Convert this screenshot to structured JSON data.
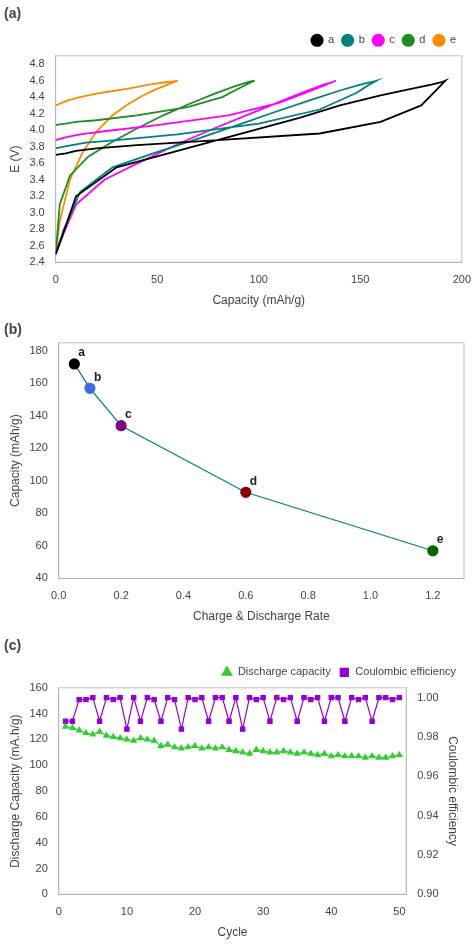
{
  "chart_data": [
    {
      "type": "line",
      "title": "(a)",
      "xlabel": "Capacity (mAh/g)",
      "ylabel": "E (V)",
      "xlim": [
        0,
        200
      ],
      "ylim": [
        2.4,
        4.9
      ],
      "xticks": [
        0,
        50,
        100,
        150,
        200
      ],
      "yticks": [
        2.4,
        2.6,
        2.8,
        {
          "value": 3.0,
          "label": "3.0"
        },
        3.2,
        3.4,
        3.6,
        3.8,
        {
          "value": 4.0,
          "label": "4.0"
        },
        4.2,
        4.4,
        4.6,
        4.8
      ],
      "grid": false,
      "legend": "upper right",
      "series": [
        {
          "name": "a",
          "color": "#000000",
          "x": [
            0,
            5,
            10,
            20,
            40,
            80,
            130,
            160,
            180,
            188,
            192,
            192,
            190,
            185,
            175,
            160,
            140,
            120,
            90,
            60,
            30,
            10,
            3,
            0
          ],
          "values": [
            3.7,
            3.72,
            3.75,
            3.78,
            3.82,
            3.88,
            3.96,
            4.1,
            4.3,
            4.5,
            4.6,
            4.6,
            4.58,
            4.55,
            4.5,
            4.42,
            4.3,
            4.15,
            3.95,
            3.75,
            3.55,
            3.2,
            2.7,
            2.5
          ]
        },
        {
          "name": "b",
          "color": "#008080",
          "x": [
            0,
            4,
            8,
            15,
            30,
            60,
            100,
            130,
            148,
            155,
            158,
            158,
            155,
            150,
            140,
            125,
            108,
            88,
            68,
            48,
            28,
            12,
            4,
            0
          ],
          "values": [
            3.78,
            3.8,
            3.82,
            3.85,
            3.88,
            3.95,
            4.08,
            4.25,
            4.45,
            4.56,
            4.6,
            4.6,
            4.58,
            4.55,
            4.48,
            4.36,
            4.22,
            4.05,
            3.88,
            3.72,
            3.55,
            3.25,
            2.8,
            2.5
          ]
        },
        {
          "name": "c",
          "color": "#FF00FF",
          "x": [
            0,
            3,
            6,
            12,
            25,
            50,
            85,
            110,
            128,
            135,
            138,
            138,
            136,
            132,
            124,
            112,
            96,
            78,
            60,
            42,
            24,
            10,
            3,
            0
          ],
          "values": [
            3.88,
            3.9,
            3.92,
            3.95,
            3.99,
            4.06,
            4.18,
            4.33,
            4.5,
            4.57,
            4.6,
            4.6,
            4.58,
            4.55,
            4.48,
            4.36,
            4.2,
            4.02,
            3.83,
            3.62,
            3.4,
            3.1,
            2.7,
            2.5
          ]
        },
        {
          "name": "d",
          "color": "#228B22",
          "x": [
            0,
            2,
            5,
            10,
            20,
            40,
            65,
            82,
            93,
            97,
            98,
            98,
            96,
            93,
            87,
            78,
            66,
            53,
            40,
            28,
            16,
            7,
            2,
            0
          ],
          "values": [
            4.06,
            4.07,
            4.08,
            4.1,
            4.12,
            4.18,
            4.28,
            4.4,
            4.54,
            4.59,
            4.6,
            4.6,
            4.59,
            4.57,
            4.52,
            4.44,
            4.32,
            4.18,
            4.02,
            3.86,
            3.68,
            3.45,
            3.1,
            2.5
          ]
        },
        {
          "name": "e",
          "color": "#FF8C00",
          "x": [
            0,
            1,
            3,
            6,
            12,
            22,
            35,
            46,
            54,
            58,
            60,
            60,
            59,
            57,
            54,
            49,
            43,
            36,
            28,
            20,
            13,
            7,
            2,
            0
          ],
          "values": [
            4.3,
            4.31,
            4.33,
            4.36,
            4.4,
            4.45,
            4.5,
            4.55,
            4.58,
            4.59,
            4.6,
            4.6,
            4.59,
            4.57,
            4.54,
            4.49,
            4.42,
            4.32,
            4.18,
            3.98,
            3.72,
            3.4,
            2.9,
            2.5
          ]
        }
      ]
    },
    {
      "type": "line",
      "title": "(b)",
      "xlabel": "Charge & Discharge Rate",
      "ylabel": "Capacity (mAh/g)",
      "xlim": [
        0,
        1.3
      ],
      "ylim": [
        40,
        185
      ],
      "xticks": [
        {
          "value": 0.0,
          "label": "0.0"
        },
        0.2,
        0.4,
        0.6,
        0.8,
        {
          "value": 1.0,
          "label": "1.0"
        },
        1.2
      ],
      "yticks": [
        40,
        60,
        80,
        100,
        120,
        140,
        160,
        180
      ],
      "grid": false,
      "series": [
        {
          "color": "#008080",
          "marker": "circle",
          "x": [
            0.05,
            0.1,
            0.2,
            0.6,
            1.2
          ],
          "values": [
            172,
            157,
            134,
            93,
            57
          ],
          "colors": [
            "#000000",
            "#4169E1",
            "#800080",
            "#8B0000",
            "#006400"
          ],
          "point_labels": [
            "a",
            "b",
            "c",
            "d",
            "e"
          ]
        }
      ]
    },
    {
      "type": "line",
      "title": "(c)",
      "xlabel": "Cycle",
      "ylabel": "Discharge Capacity (mA.h/g)",
      "y2label": "Coulombic efficiency",
      "xlim": [
        0,
        51
      ],
      "ylim": [
        0,
        160
      ],
      "y2lim": [
        0.9,
        1.005
      ],
      "xticks": [
        0,
        10,
        20,
        30,
        40,
        50
      ],
      "yticks": [
        0,
        20,
        40,
        60,
        80,
        100,
        120,
        140,
        160
      ],
      "y2ticks": [
        {
          "value": 0.9,
          "label": "0.90"
        },
        0.92,
        0.94,
        0.96,
        0.98,
        {
          "value": 1.0,
          "label": "1.00"
        }
      ],
      "grid": false,
      "legend": "upper right",
      "series": [
        {
          "name": "Discharge capacity",
          "color": "#32CD32",
          "marker": "triangle",
          "x": [
            1,
            2,
            3,
            4,
            5,
            6,
            7,
            8,
            9,
            10,
            11,
            12,
            13,
            14,
            15,
            16,
            17,
            18,
            19,
            20,
            21,
            22,
            23,
            24,
            25,
            26,
            27,
            28,
            29,
            30,
            31,
            32,
            33,
            34,
            35,
            36,
            37,
            38,
            39,
            40,
            41,
            42,
            43,
            44,
            45,
            46,
            47,
            48,
            49,
            50
          ],
          "values": [
            130,
            129,
            127,
            125,
            124,
            126,
            123,
            122,
            121,
            120,
            119,
            121,
            120,
            119,
            115,
            116,
            114,
            113,
            114,
            115,
            113,
            114,
            113,
            114,
            112,
            111,
            110,
            109,
            112,
            111,
            110,
            110,
            111,
            110,
            109,
            110,
            109,
            108,
            109,
            107,
            108,
            107,
            107,
            107,
            106,
            107,
            106,
            106,
            107,
            108
          ]
        },
        {
          "name": "Coulombic efficiency",
          "color": "#9400D3",
          "marker": "square",
          "axis": "y2",
          "x": [
            1,
            2,
            3,
            4,
            5,
            6,
            7,
            8,
            9,
            10,
            11,
            12,
            13,
            14,
            15,
            16,
            17,
            18,
            19,
            20,
            21,
            22,
            23,
            24,
            25,
            26,
            27,
            28,
            29,
            30,
            31,
            32,
            33,
            34,
            35,
            36,
            37,
            38,
            39,
            40,
            41,
            42,
            43,
            44,
            45,
            46,
            47,
            48,
            49,
            50
          ],
          "values": [
            0.988,
            0.988,
            0.999,
            0.999,
            1.0,
            0.988,
            1.0,
            0.999,
            1.0,
            0.984,
            1.0,
            0.988,
            1.0,
            0.999,
            0.988,
            1.0,
            0.999,
            0.984,
            1.0,
            0.999,
            1.0,
            0.988,
            1.0,
            1.0,
            0.988,
            1.0,
            0.984,
            1.0,
            0.999,
            1.0,
            0.988,
            1.0,
            0.999,
            1.0,
            0.988,
            1.0,
            0.999,
            1.0,
            0.988,
            1.0,
            1.0,
            0.988,
            1.0,
            0.999,
            1.0,
            0.988,
            1.0,
            1.0,
            0.999,
            1.0
          ]
        }
      ]
    }
  ]
}
